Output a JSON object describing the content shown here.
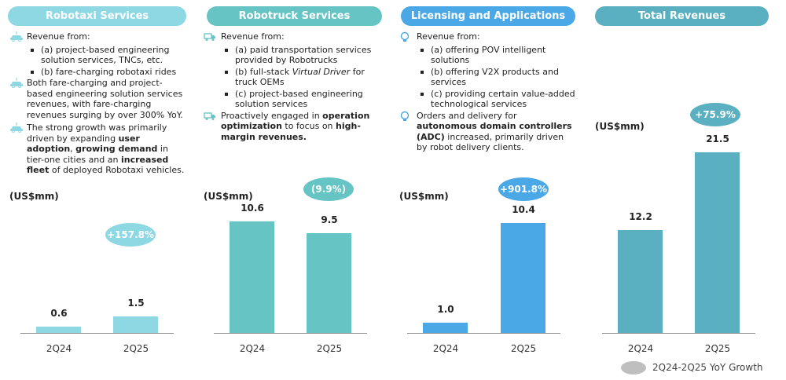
{
  "legend": "2Q24-2Q25 YoY Growth",
  "panels": [
    {
      "title": "Robotaxi Services",
      "color": "#8dd8e3",
      "icon": "robotaxi-car-icon",
      "items": [
        {
          "segs": [
            {
              "t": "Revenue from:"
            }
          ],
          "subs": [
            "(a) project-based engineering solution services, TNCs, etc.",
            "(b) fare-charging robotaxi rides"
          ]
        },
        {
          "segs": [
            {
              "t": "Both fare-charging and project-based engineering solution services revenues, with fare-charging revenues surging by over 300% YoY."
            }
          ]
        },
        {
          "segs": [
            {
              "t": "The strong growth was primarily driven by expanding "
            },
            {
              "t": "user adoption",
              "b": true
            },
            {
              "t": ", "
            },
            {
              "t": "growing demand",
              "b": true
            },
            {
              "t": " in tier-one cities and an "
            },
            {
              "t": "increased fleet",
              "b": true
            },
            {
              "t": " of deployed Robotaxi vehicles."
            }
          ]
        }
      ]
    },
    {
      "title": "Robotruck Services",
      "color": "#66c4c4",
      "icon": "truck-icon",
      "items": [
        {
          "segs": [
            {
              "t": "Revenue from:"
            }
          ],
          "subs": [
            "(a) paid transportation services provided by Robotrucks",
            "(b) full-stack Virtual Driver for truck OEMs",
            "(c) project-based engineering solution services"
          ]
        },
        {
          "segs": [
            {
              "t": "Proactively engaged in "
            },
            {
              "t": "operation optimization",
              "b": true
            },
            {
              "t": " to focus on "
            },
            {
              "t": "high-margin revenues.",
              "b": true
            }
          ]
        }
      ]
    },
    {
      "title": "Licensing and Applications",
      "color": "#4aa8e6",
      "icon": "lightbulb-icon",
      "items": [
        {
          "segs": [
            {
              "t": "Revenue from:"
            }
          ],
          "subs": [
            "(a) offering POV intelligent solutions",
            "(b) offering V2X products and services",
            "(c) providing certain value-added technological services"
          ]
        },
        {
          "segs": [
            {
              "t": "Orders and delivery for "
            },
            {
              "t": "autonomous domain controllers (ADC)",
              "b": true
            },
            {
              "t": " increased, primarily driven by robot delivery clients."
            }
          ]
        }
      ]
    },
    {
      "title": "Total Revenues",
      "color": "#5aafc1",
      "icon": "",
      "items": []
    }
  ],
  "chart_data": [
    {
      "type": "bar",
      "title": "Robotaxi Services",
      "ylabel": "(US$mm)",
      "categories": [
        "2Q24",
        "2Q25"
      ],
      "values": [
        0.6,
        1.5
      ],
      "value_labels": [
        "0.6",
        "1.5"
      ],
      "growth": "+157.8%",
      "color": "#8dd8e3"
    },
    {
      "type": "bar",
      "title": "Robotruck Services",
      "ylabel": "(US$mm)",
      "categories": [
        "2Q24",
        "2Q25"
      ],
      "values": [
        10.6,
        9.5
      ],
      "value_labels": [
        "10.6",
        "9.5"
      ],
      "growth": "(9.9%)",
      "color": "#66c4c4"
    },
    {
      "type": "bar",
      "title": "Licensing and Applications",
      "ylabel": "(US$mm)",
      "categories": [
        "2Q24",
        "2Q25"
      ],
      "values": [
        1.0,
        10.4
      ],
      "value_labels": [
        "1.0",
        "10.4"
      ],
      "growth": "+901.8%",
      "color": "#4aa8e6"
    },
    {
      "type": "bar",
      "title": "Total Revenues",
      "ylabel": "(US$mm)",
      "categories": [
        "2Q24",
        "2Q25"
      ],
      "values": [
        12.2,
        21.5
      ],
      "value_labels": [
        "12.2",
        "21.5"
      ],
      "growth": "+75.9%",
      "color": "#5aafc1"
    }
  ]
}
